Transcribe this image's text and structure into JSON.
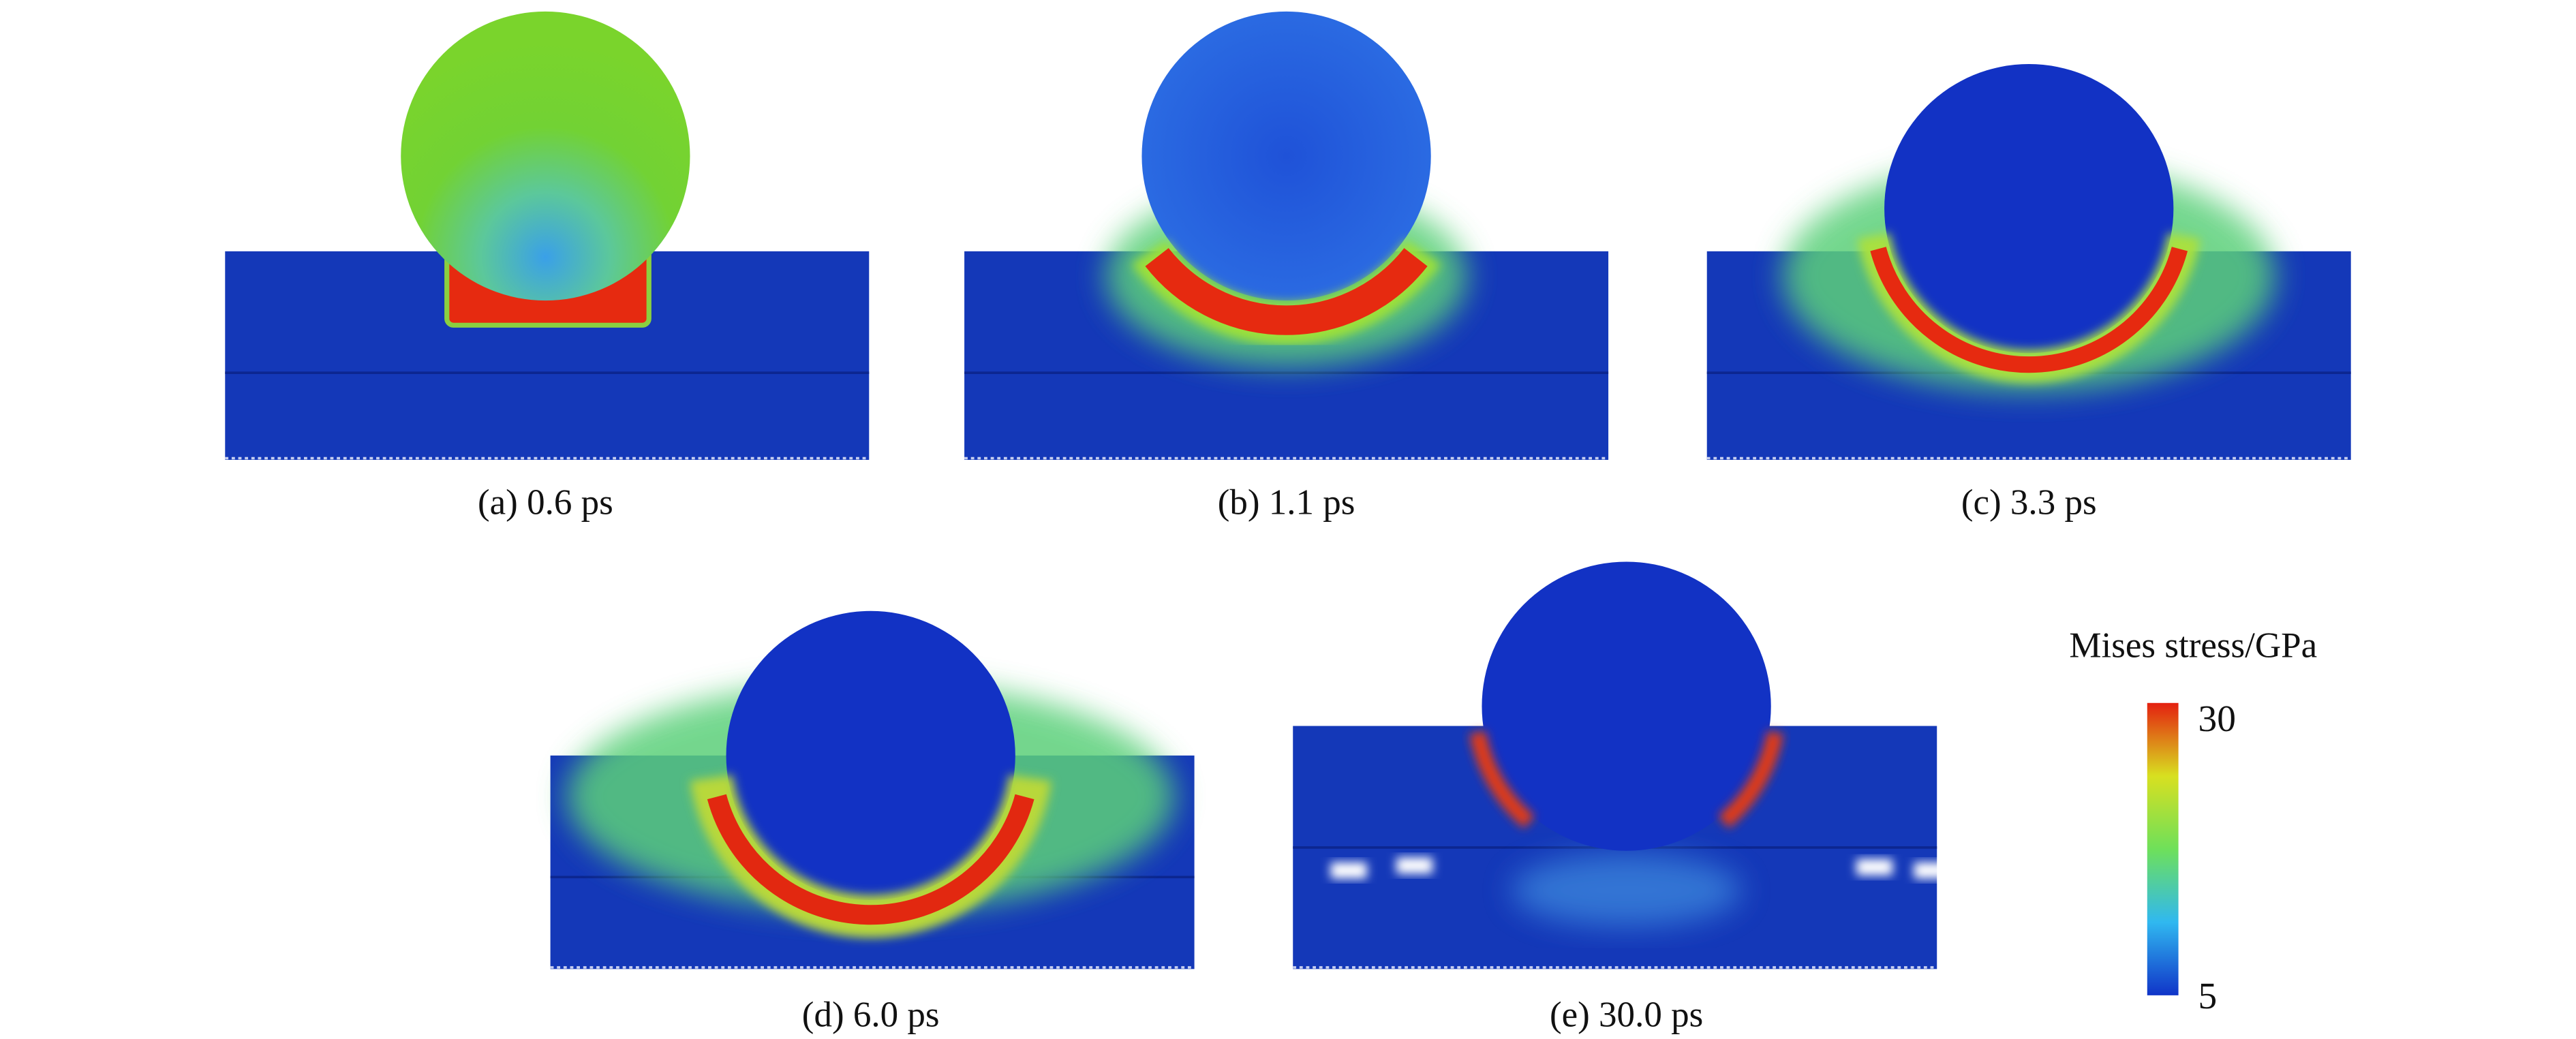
{
  "panels": [
    {
      "caption": "(a) 0.6 ps"
    },
    {
      "caption": "(b) 1.1 ps"
    },
    {
      "caption": "(c) 3.3 ps"
    },
    {
      "caption": "(d) 6.0 ps"
    },
    {
      "caption": "(e) 30.0 ps"
    }
  ],
  "colorbar": {
    "title": "Mises stress/GPa",
    "max_label": "30",
    "min_label": "5"
  }
}
